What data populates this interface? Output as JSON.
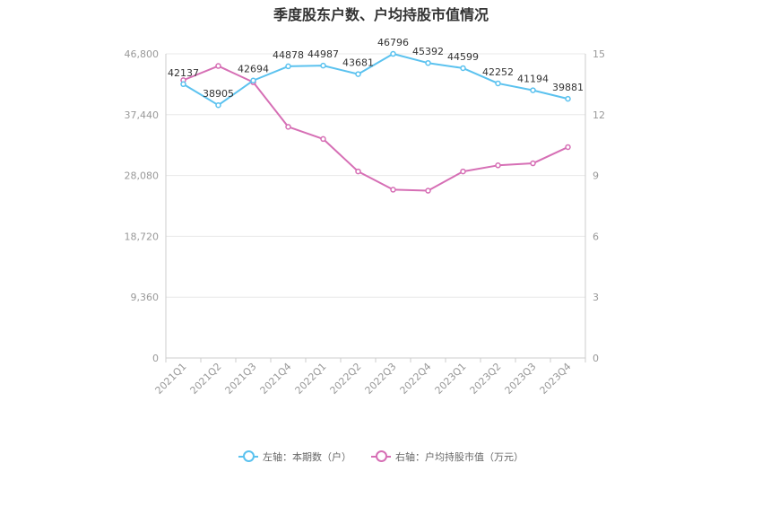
{
  "chart_data": {
    "type": "line",
    "title": "季度股东户数、户均持股市值情况",
    "categories": [
      "2021Q1",
      "2021Q2",
      "2021Q3",
      "2021Q4",
      "2022Q1",
      "2022Q2",
      "2022Q3",
      "2022Q4",
      "2023Q1",
      "2023Q2",
      "2023Q3",
      "2023Q4"
    ],
    "series": [
      {
        "name": "左轴：本期数（户）",
        "axis": "left",
        "color": "#5bc2ef",
        "values": [
          42137,
          38905,
          42694,
          44878,
          44987,
          43681,
          46796,
          45392,
          44599,
          42252,
          41194,
          39881
        ],
        "labels": [
          "42137",
          "38905",
          "42694",
          "44878",
          "44987",
          "43681",
          "46796",
          "45392",
          "44599",
          "42252",
          "41194",
          "39881"
        ]
      },
      {
        "name": "右轴：户均持股市值（万元）",
        "axis": "right",
        "color": "#d66fb5",
        "values": [
          13.7,
          14.4,
          13.6,
          11.4,
          10.8,
          9.2,
          8.3,
          8.25,
          9.2,
          9.5,
          9.6,
          10.4
        ]
      }
    ],
    "left_axis": {
      "ylim": [
        0,
        46800
      ],
      "ticks": [
        "0",
        "9,360",
        "18,720",
        "28,080",
        "37,440",
        "46,800"
      ]
    },
    "right_axis": {
      "ylim": [
        0,
        15
      ],
      "ticks": [
        "0",
        "3",
        "6",
        "9",
        "12",
        "15"
      ]
    },
    "grid": true,
    "legend_position": "bottom"
  }
}
